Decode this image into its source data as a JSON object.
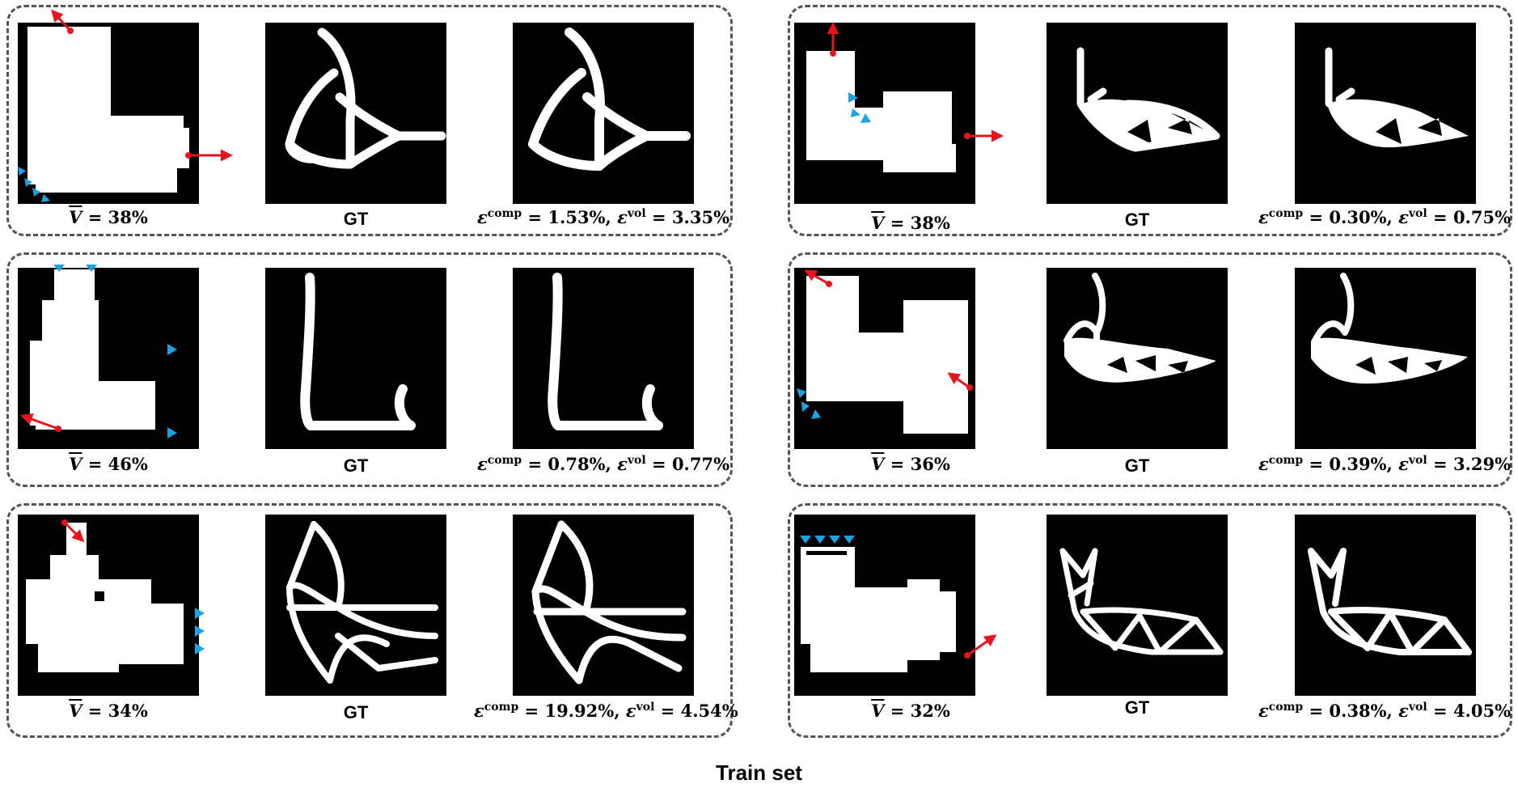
{
  "figure_title": "Train set",
  "gt_label": "GT",
  "volume_symbol": "V",
  "comp_symbol": "ε",
  "comp_sup": "comp",
  "vol_sup": "vol",
  "colors": {
    "force_arrow": "#e8141b",
    "support_marker": "#1aa3e0",
    "background": "#000000",
    "material": "#ffffff"
  },
  "groups": [
    {
      "volume_fraction": "38%",
      "comp_error": "1.53%",
      "vol_error": "3.35%"
    },
    {
      "volume_fraction": "46%",
      "comp_error": "0.78%",
      "vol_error": "0.77%"
    },
    {
      "volume_fraction": "34%",
      "comp_error": "19.92%",
      "vol_error": "4.54%"
    },
    {
      "volume_fraction": "38%",
      "comp_error": "0.30%",
      "vol_error": "0.75%"
    },
    {
      "volume_fraction": "36%",
      "comp_error": "0.39%",
      "vol_error": "3.29%"
    },
    {
      "volume_fraction": "32%",
      "comp_error": "0.38%",
      "vol_error": "4.05%"
    }
  ]
}
